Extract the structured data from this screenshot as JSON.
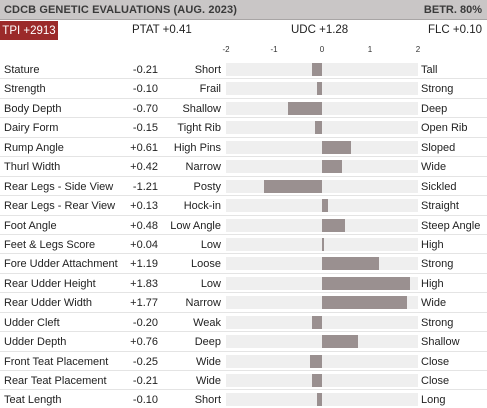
{
  "header": {
    "title": "CDCB GENETIC EVALUATIONS (AUG. 2023)",
    "reliability": "BETR. 80%"
  },
  "summary": {
    "tpi": "TPI +2913",
    "ptat": "PTAT +0.41",
    "udc": "UDC +1.28",
    "flc": "FLC +0.10"
  },
  "scale": {
    "ticks": [
      "-2",
      "-1",
      "0",
      "1",
      "2"
    ],
    "min": -2,
    "max": 2
  },
  "colors": {
    "badge": "#9b2a2a",
    "bar": "#9a9090",
    "track": "#efefef",
    "header": "#c9c6c6"
  },
  "traits": [
    {
      "name": "Stature",
      "display": "-0.21",
      "value": -0.21,
      "low": "Short",
      "high": "Tall"
    },
    {
      "name": "Strength",
      "display": "-0.10",
      "value": -0.1,
      "low": "Frail",
      "high": "Strong"
    },
    {
      "name": "Body Depth",
      "display": "-0.70",
      "value": -0.7,
      "low": "Shallow",
      "high": "Deep"
    },
    {
      "name": "Dairy Form",
      "display": "-0.15",
      "value": -0.15,
      "low": "Tight Rib",
      "high": "Open Rib"
    },
    {
      "name": "Rump Angle",
      "display": "+0.61",
      "value": 0.61,
      "low": "High Pins",
      "high": "Sloped"
    },
    {
      "name": "Thurl Width",
      "display": "+0.42",
      "value": 0.42,
      "low": "Narrow",
      "high": "Wide"
    },
    {
      "name": "Rear Legs - Side View",
      "display": "-1.21",
      "value": -1.21,
      "low": "Posty",
      "high": "Sickled"
    },
    {
      "name": "Rear Legs - Rear View",
      "display": "+0.13",
      "value": 0.13,
      "low": "Hock-in",
      "high": "Straight"
    },
    {
      "name": "Foot Angle",
      "display": "+0.48",
      "value": 0.48,
      "low": "Low Angle",
      "high": "Steep Angle"
    },
    {
      "name": "Feet & Legs Score",
      "display": "+0.04",
      "value": 0.04,
      "low": "Low",
      "high": "High"
    },
    {
      "name": "Fore Udder Attachment",
      "display": "+1.19",
      "value": 1.19,
      "low": "Loose",
      "high": "Strong"
    },
    {
      "name": "Rear Udder Height",
      "display": "+1.83",
      "value": 1.83,
      "low": "Low",
      "high": "High"
    },
    {
      "name": "Rear Udder Width",
      "display": "+1.77",
      "value": 1.77,
      "low": "Narrow",
      "high": "Wide"
    },
    {
      "name": "Udder Cleft",
      "display": "-0.20",
      "value": -0.2,
      "low": "Weak",
      "high": "Strong"
    },
    {
      "name": "Udder Depth",
      "display": "+0.76",
      "value": 0.76,
      "low": "Deep",
      "high": "Shallow"
    },
    {
      "name": "Front Teat Placement",
      "display": "-0.25",
      "value": -0.25,
      "low": "Wide",
      "high": "Close"
    },
    {
      "name": "Rear Teat Placement",
      "display": "-0.21",
      "value": -0.21,
      "low": "Wide",
      "high": "Close"
    },
    {
      "name": "Teat Length",
      "display": "-0.10",
      "value": -0.1,
      "low": "Short",
      "high": "Long"
    }
  ]
}
